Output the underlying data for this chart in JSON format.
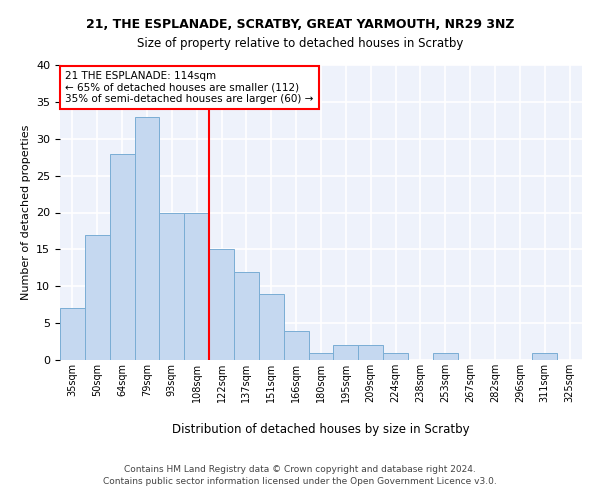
{
  "title1": "21, THE ESPLANADE, SCRATBY, GREAT YARMOUTH, NR29 3NZ",
  "title2": "Size of property relative to detached houses in Scratby",
  "xlabel": "Distribution of detached houses by size in Scratby",
  "ylabel": "Number of detached properties",
  "categories": [
    "35sqm",
    "50sqm",
    "64sqm",
    "79sqm",
    "93sqm",
    "108sqm",
    "122sqm",
    "137sqm",
    "151sqm",
    "166sqm",
    "180sqm",
    "195sqm",
    "209sqm",
    "224sqm",
    "238sqm",
    "253sqm",
    "267sqm",
    "282sqm",
    "296sqm",
    "311sqm",
    "325sqm"
  ],
  "values": [
    7,
    17,
    28,
    33,
    20,
    20,
    15,
    12,
    9,
    4,
    1,
    2,
    2,
    1,
    0,
    1,
    0,
    0,
    0,
    1,
    0
  ],
  "bar_color": "#c5d8f0",
  "bar_edge_color": "#7aadd4",
  "vline_x": 6.0,
  "vline_color": "red",
  "annotation_text": "21 THE ESPLANADE: 114sqm\n← 65% of detached houses are smaller (112)\n35% of semi-detached houses are larger (60) →",
  "annotation_box_color": "white",
  "annotation_box_edge": "red",
  "footer1": "Contains HM Land Registry data © Crown copyright and database right 2024.",
  "footer2": "Contains public sector information licensed under the Open Government Licence v3.0.",
  "ylim": [
    0,
    40
  ],
  "background_color": "#eef2fb"
}
